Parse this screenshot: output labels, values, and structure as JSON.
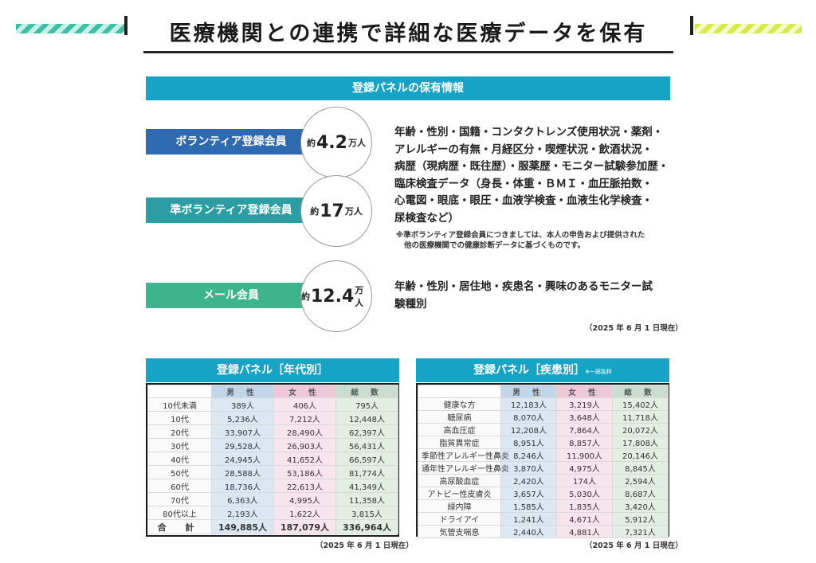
{
  "header": {
    "title": "医療機関との連携で詳細な医療データを保有"
  },
  "panel_info": {
    "title": "登録パネルの保有情報",
    "members": [
      {
        "label": "ボランティア登録会員",
        "prefix": "約",
        "count": "4.2",
        "unit": "万人"
      },
      {
        "label": "準ボランティア登録会員",
        "prefix": "約",
        "count": "17",
        "unit": "万人"
      },
      {
        "label": "メール会員",
        "prefix": "約",
        "count": "12.4",
        "unit": "万人"
      }
    ],
    "volunteer_info": [
      "年齢・性別・国籍・コンタクトレンズ使用状況・薬剤・",
      "アレルギーの有無・月経区分・喫煙状況・飲酒状況・",
      "病歴（現病歴・既往歴）・服薬歴・モニター試験参加歴・",
      "臨床検査データ（身長・体重・ＢＭＩ・血圧脈拍数・",
      "心電図・眼底・眼圧・血液学検査・血液生化学検査・",
      "尿検査など）"
    ],
    "note": [
      "※準ボランティア登録会員につきましては、本人の申告および提供された",
      "他の医療機関での健康診断データに基づくものです。"
    ],
    "mail_info": [
      "年齢・性別・居住地・疾患名・興味のあるモニター試",
      "験種別"
    ],
    "date": "（2025 年 6 月 1 日現在）"
  },
  "age_table": {
    "title": "登録パネル［年代別］",
    "columns": [
      "",
      "男 性",
      "女 性",
      "総 数"
    ],
    "rows": [
      [
        "10代未満",
        "389人",
        "406人",
        "795人"
      ],
      [
        "10代",
        "5,236人",
        "7,212人",
        "12,448人"
      ],
      [
        "20代",
        "33,907人",
        "28,490人",
        "62,397人"
      ],
      [
        "30代",
        "29,528人",
        "26,903人",
        "56,431人"
      ],
      [
        "40代",
        "24,945人",
        "41,652人",
        "66,597人"
      ],
      [
        "50代",
        "28,588人",
        "53,186人",
        "81,774人"
      ],
      [
        "60代",
        "18,736人",
        "22,613人",
        "41,349人"
      ],
      [
        "70代",
        "6,363人",
        "4,995人",
        "11,358人"
      ],
      [
        "80代以上",
        "2,193人",
        "1,622人",
        "3,815人"
      ]
    ],
    "total": [
      "合 計",
      "149,885人",
      "187,079人",
      "336,964人"
    ],
    "date": "（2025 年 6 月 1 日現在）"
  },
  "disease_table": {
    "title": "登録パネル［疾患別］",
    "title_note": "※一部抜粋",
    "columns": [
      "",
      "男 性",
      "女 性",
      "総 数"
    ],
    "rows": [
      [
        "健康な方",
        "12,183人",
        "3,219人",
        "15,402人"
      ],
      [
        "糖尿病",
        "8,070人",
        "3,648人",
        "11,718人"
      ],
      [
        "高血圧症",
        "12,208人",
        "7,864人",
        "20,072人"
      ],
      [
        "脂質異常症",
        "8,951人",
        "8,857人",
        "17,808人"
      ],
      [
        "季節性アレルギー性鼻炎",
        "8,246人",
        "11,900人",
        "20,146人"
      ],
      [
        "通年性アレルギー性鼻炎",
        "3,870人",
        "4,975人",
        "8,845人"
      ],
      [
        "高尿酸血症",
        "2,420人",
        "174人",
        "2,594人"
      ],
      [
        "アトピー性皮膚炎",
        "3,657人",
        "5,030人",
        "8,687人"
      ],
      [
        "緑内障",
        "1,585人",
        "1,835人",
        "3,420人"
      ],
      [
        "ドライアイ",
        "1,241人",
        "4,671人",
        "5,912人"
      ],
      [
        "気管支喘息",
        "2,440人",
        "4,881人",
        "7,321人"
      ]
    ],
    "date": "（2025 年 6 月 1 日現在）"
  }
}
